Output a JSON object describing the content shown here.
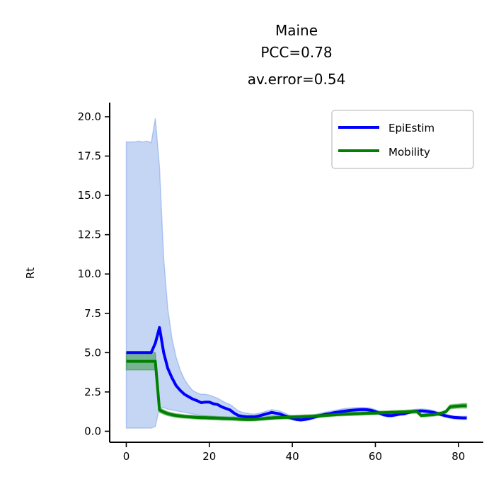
{
  "chart_data": {
    "type": "line",
    "title_lines": [
      "Maine",
      "PCC=0.78",
      "av.error=0.54"
    ],
    "xlabel": "",
    "ylabel": "Rt",
    "xlim": [
      -4,
      86
    ],
    "ylim": [
      -0.7,
      20.9
    ],
    "xticks": [
      0,
      20,
      40,
      60,
      80
    ],
    "yticks": [
      0.0,
      2.5,
      5.0,
      7.5,
      10.0,
      12.5,
      15.0,
      17.5,
      20.0
    ],
    "grid": false,
    "legend": "top-right",
    "series": [
      {
        "name": "EpiEstim",
        "color": "#0000ff",
        "band_color": "#4a7fe0",
        "x": [
          0,
          1,
          2,
          3,
          4,
          5,
          6,
          7,
          8,
          9,
          10,
          11,
          12,
          13,
          14,
          15,
          16,
          17,
          18,
          19,
          20,
          21,
          22,
          23,
          24,
          25,
          26,
          27,
          28,
          29,
          30,
          31,
          32,
          33,
          34,
          35,
          36,
          37,
          38,
          39,
          40,
          41,
          42,
          43,
          44,
          45,
          46,
          47,
          48,
          49,
          50,
          51,
          52,
          53,
          54,
          55,
          56,
          57,
          58,
          59,
          60,
          61,
          62,
          63,
          64,
          65,
          66,
          67,
          68,
          69,
          70,
          71,
          72,
          73,
          74,
          75,
          76,
          77,
          78,
          79,
          80,
          81,
          82
        ],
        "y": [
          5.0,
          5.0,
          5.0,
          5.0,
          5.0,
          5.0,
          5.0,
          5.6,
          6.6,
          5.0,
          4.0,
          3.4,
          2.9,
          2.6,
          2.35,
          2.2,
          2.05,
          1.95,
          1.82,
          1.85,
          1.85,
          1.75,
          1.7,
          1.55,
          1.45,
          1.35,
          1.15,
          1.0,
          0.95,
          0.92,
          0.92,
          0.92,
          0.98,
          1.05,
          1.12,
          1.2,
          1.15,
          1.1,
          1.0,
          0.9,
          0.82,
          0.75,
          0.72,
          0.75,
          0.8,
          0.88,
          0.95,
          1.02,
          1.08,
          1.12,
          1.18,
          1.22,
          1.26,
          1.3,
          1.33,
          1.35,
          1.37,
          1.38,
          1.37,
          1.33,
          1.25,
          1.15,
          1.05,
          1.0,
          1.0,
          1.05,
          1.1,
          1.12,
          1.2,
          1.25,
          1.28,
          1.3,
          1.28,
          1.25,
          1.2,
          1.12,
          1.05,
          0.98,
          0.92,
          0.88,
          0.86,
          0.85,
          0.85
        ],
        "lower": [
          0.2,
          0.2,
          0.2,
          0.2,
          0.2,
          0.2,
          0.2,
          0.3,
          1.5,
          1.5,
          1.4,
          1.35,
          1.3,
          1.25,
          1.2,
          1.15,
          1.1,
          1.05,
          1.0,
          0.97,
          0.95,
          0.92,
          0.9,
          0.87,
          0.85,
          0.82,
          0.8,
          0.75,
          0.72,
          0.7,
          0.72,
          0.74,
          0.78,
          0.82,
          0.9,
          0.98,
          0.95,
          0.92,
          0.85,
          0.78,
          0.72,
          0.66,
          0.63,
          0.66,
          0.71,
          0.78,
          0.85,
          0.92,
          0.98,
          1.02,
          1.08,
          1.12,
          1.16,
          1.2,
          1.23,
          1.25,
          1.27,
          1.28,
          1.27,
          1.23,
          1.15,
          1.05,
          0.95,
          0.9,
          0.9,
          0.95,
          1.0,
          1.02,
          1.1,
          1.15,
          1.18,
          1.2,
          1.18,
          1.15,
          1.1,
          1.02,
          0.95,
          0.88,
          0.82,
          0.78,
          0.76,
          0.75,
          0.75
        ],
        "upper": [
          18.4,
          18.4,
          18.4,
          18.45,
          18.4,
          18.45,
          18.35,
          19.9,
          16.8,
          11.0,
          7.8,
          5.9,
          4.7,
          3.9,
          3.3,
          2.9,
          2.6,
          2.45,
          2.35,
          2.35,
          2.3,
          2.2,
          2.1,
          1.95,
          1.8,
          1.7,
          1.5,
          1.3,
          1.2,
          1.15,
          1.1,
          1.1,
          1.15,
          1.22,
          1.3,
          1.38,
          1.33,
          1.28,
          1.18,
          1.06,
          0.96,
          0.88,
          0.84,
          0.86,
          0.92,
          1.0,
          1.08,
          1.16,
          1.22,
          1.26,
          1.32,
          1.37,
          1.42,
          1.46,
          1.48,
          1.5,
          1.52,
          1.52,
          1.5,
          1.46,
          1.38,
          1.27,
          1.16,
          1.12,
          1.12,
          1.16,
          1.22,
          1.24,
          1.32,
          1.37,
          1.4,
          1.42,
          1.4,
          1.37,
          1.32,
          1.24,
          1.16,
          1.08,
          1.02,
          0.98,
          0.96,
          0.95,
          0.95
        ]
      },
      {
        "name": "Mobility",
        "color": "#008000",
        "band_color": "#008000",
        "x": [
          0,
          1,
          2,
          3,
          4,
          5,
          6,
          7,
          8,
          9,
          10,
          11,
          12,
          13,
          14,
          15,
          16,
          17,
          18,
          19,
          20,
          21,
          22,
          23,
          24,
          25,
          26,
          27,
          28,
          29,
          30,
          31,
          32,
          33,
          34,
          35,
          36,
          37,
          38,
          39,
          40,
          41,
          42,
          43,
          44,
          45,
          46,
          47,
          48,
          49,
          50,
          51,
          52,
          53,
          54,
          55,
          56,
          57,
          58,
          59,
          60,
          61,
          62,
          63,
          64,
          65,
          66,
          67,
          68,
          69,
          70,
          71,
          72,
          73,
          74,
          75,
          76,
          77,
          78,
          79,
          80,
          81,
          82
        ],
        "y": [
          4.45,
          4.45,
          4.45,
          4.45,
          4.45,
          4.45,
          4.45,
          4.45,
          1.35,
          1.22,
          1.12,
          1.05,
          1.0,
          0.97,
          0.94,
          0.92,
          0.9,
          0.88,
          0.87,
          0.86,
          0.85,
          0.84,
          0.83,
          0.82,
          0.81,
          0.8,
          0.8,
          0.78,
          0.76,
          0.75,
          0.75,
          0.76,
          0.78,
          0.8,
          0.82,
          0.84,
          0.86,
          0.87,
          0.88,
          0.89,
          0.9,
          0.91,
          0.92,
          0.93,
          0.94,
          0.95,
          0.97,
          0.99,
          1.01,
          1.03,
          1.05,
          1.07,
          1.08,
          1.09,
          1.1,
          1.11,
          1.12,
          1.13,
          1.14,
          1.15,
          1.16,
          1.17,
          1.18,
          1.19,
          1.2,
          1.21,
          1.22,
          1.23,
          1.24,
          1.25,
          1.26,
          1.0,
          1.02,
          1.04,
          1.06,
          1.1,
          1.15,
          1.25,
          1.55,
          1.58,
          1.6,
          1.62,
          1.62
        ],
        "lower": [
          3.9,
          3.9,
          3.9,
          3.9,
          3.9,
          3.9,
          3.9,
          3.9,
          1.2,
          1.08,
          0.99,
          0.93,
          0.88,
          0.85,
          0.83,
          0.81,
          0.79,
          0.77,
          0.76,
          0.75,
          0.74,
          0.73,
          0.72,
          0.71,
          0.7,
          0.7,
          0.69,
          0.67,
          0.66,
          0.65,
          0.65,
          0.66,
          0.68,
          0.7,
          0.72,
          0.74,
          0.76,
          0.77,
          0.78,
          0.79,
          0.8,
          0.81,
          0.82,
          0.83,
          0.84,
          0.85,
          0.87,
          0.89,
          0.91,
          0.93,
          0.95,
          0.97,
          0.98,
          0.99,
          1.0,
          1.01,
          1.02,
          1.03,
          1.04,
          1.05,
          1.06,
          1.07,
          1.08,
          1.09,
          1.1,
          1.11,
          1.12,
          1.13,
          1.14,
          1.15,
          1.16,
          0.9,
          0.92,
          0.94,
          0.96,
          1.0,
          1.05,
          1.15,
          1.42,
          1.45,
          1.47,
          1.48,
          1.48
        ],
        "upper": [
          5.0,
          5.0,
          5.0,
          5.0,
          5.0,
          5.0,
          5.0,
          5.0,
          1.5,
          1.36,
          1.25,
          1.17,
          1.12,
          1.09,
          1.05,
          1.03,
          1.01,
          0.99,
          0.98,
          0.97,
          0.96,
          0.95,
          0.94,
          0.93,
          0.92,
          0.91,
          0.91,
          0.89,
          0.87,
          0.86,
          0.86,
          0.87,
          0.89,
          0.91,
          0.93,
          0.95,
          0.97,
          0.98,
          0.99,
          1.0,
          1.01,
          1.02,
          1.03,
          1.04,
          1.05,
          1.06,
          1.08,
          1.1,
          1.12,
          1.14,
          1.16,
          1.18,
          1.19,
          1.2,
          1.21,
          1.22,
          1.23,
          1.24,
          1.25,
          1.26,
          1.27,
          1.28,
          1.29,
          1.3,
          1.31,
          1.32,
          1.33,
          1.34,
          1.35,
          1.36,
          1.37,
          1.1,
          1.12,
          1.14,
          1.16,
          1.2,
          1.25,
          1.35,
          1.68,
          1.71,
          1.73,
          1.76,
          1.76
        ]
      }
    ]
  }
}
